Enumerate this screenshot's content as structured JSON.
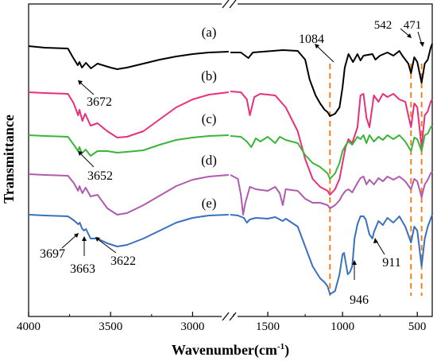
{
  "chart_data": {
    "type": "line",
    "xlabel_main": "Wavenumber(cm",
    "xlabel_sup": "-1",
    "xlabel_close": ")",
    "ylabel": "Transmittance",
    "x_axis_break": true,
    "xlim_left": [
      4000,
      2750
    ],
    "xlim_right": [
      1750,
      400
    ],
    "xticks_left": [
      "4000",
      "3500",
      "3000"
    ],
    "xticks_right": [
      "1500",
      "1000",
      "500"
    ],
    "series": [
      {
        "name": "(a)",
        "color": "#000000",
        "left": [
          [
            4000,
            58
          ],
          [
            3900,
            60
          ],
          [
            3760,
            61
          ],
          [
            3730,
            72
          ],
          [
            3700,
            82
          ],
          [
            3690,
            78
          ],
          [
            3675,
            85
          ],
          [
            3650,
            79
          ],
          [
            3620,
            86
          ],
          [
            3580,
            80
          ],
          [
            3500,
            85
          ],
          [
            3460,
            87
          ],
          [
            3400,
            85
          ],
          [
            3300,
            80
          ],
          [
            3200,
            75
          ],
          [
            3100,
            71
          ],
          [
            3000,
            68
          ],
          [
            2900,
            66
          ],
          [
            2780,
            65
          ]
        ],
        "right": [
          [
            1750,
            66
          ],
          [
            1680,
            66
          ],
          [
            1630,
            73
          ],
          [
            1600,
            66
          ],
          [
            1400,
            63
          ],
          [
            1300,
            64
          ],
          [
            1250,
            75
          ],
          [
            1220,
            100
          ],
          [
            1180,
            120
          ],
          [
            1150,
            130
          ],
          [
            1120,
            138
          ],
          [
            1100,
            141
          ],
          [
            1084,
            146
          ],
          [
            1050,
            143
          ],
          [
            1020,
            135
          ],
          [
            1000,
            110
          ],
          [
            985,
            85
          ],
          [
            960,
            68
          ],
          [
            930,
            78
          ],
          [
            900,
            68
          ],
          [
            880,
            76
          ],
          [
            860,
            70
          ],
          [
            800,
            68
          ],
          [
            780,
            75
          ],
          [
            750,
            70
          ],
          [
            700,
            66
          ],
          [
            660,
            70
          ],
          [
            620,
            64
          ],
          [
            600,
            70
          ],
          [
            560,
            80
          ],
          [
            542,
            92
          ],
          [
            520,
            72
          ],
          [
            500,
            78
          ],
          [
            471,
            104
          ],
          [
            450,
            80
          ],
          [
            430,
            75
          ],
          [
            410,
            60
          ],
          [
            400,
            55
          ]
        ]
      },
      {
        "name": "(b)",
        "color": "#e8307a",
        "left": [
          [
            4000,
            116
          ],
          [
            3900,
            117
          ],
          [
            3760,
            118
          ],
          [
            3725,
            130
          ],
          [
            3698,
            145
          ],
          [
            3690,
            138
          ],
          [
            3672,
            152
          ],
          [
            3655,
            143
          ],
          [
            3622,
            158
          ],
          [
            3580,
            155
          ],
          [
            3520,
            165
          ],
          [
            3460,
            173
          ],
          [
            3400,
            172
          ],
          [
            3300,
            165
          ],
          [
            3200,
            150
          ],
          [
            3100,
            135
          ],
          [
            3000,
            125
          ],
          [
            2900,
            119
          ],
          [
            2780,
            116
          ]
        ],
        "right": [
          [
            1750,
            115
          ],
          [
            1680,
            116
          ],
          [
            1640,
            125
          ],
          [
            1620,
            145
          ],
          [
            1590,
            122
          ],
          [
            1550,
            118
          ],
          [
            1450,
            120
          ],
          [
            1380,
            135
          ],
          [
            1300,
            165
          ],
          [
            1250,
            200
          ],
          [
            1200,
            225
          ],
          [
            1150,
            235
          ],
          [
            1100,
            240
          ],
          [
            1084,
            245
          ],
          [
            1050,
            238
          ],
          [
            1020,
            225
          ],
          [
            1000,
            205
          ],
          [
            980,
            185
          ],
          [
            960,
            175
          ],
          [
            935,
            180
          ],
          [
            900,
            160
          ],
          [
            880,
            120
          ],
          [
            860,
            118
          ],
          [
            840,
            148
          ],
          [
            820,
            160
          ],
          [
            790,
            120
          ],
          [
            760,
            128
          ],
          [
            730,
            118
          ],
          [
            700,
            122
          ],
          [
            660,
            118
          ],
          [
            620,
            125
          ],
          [
            580,
            128
          ],
          [
            542,
            160
          ],
          [
            520,
            130
          ],
          [
            500,
            135
          ],
          [
            471,
            185
          ],
          [
            450,
            145
          ],
          [
            430,
            140
          ],
          [
            410,
            128
          ],
          [
            400,
            125
          ]
        ]
      },
      {
        "name": "(c)",
        "color": "#3cb43c",
        "left": [
          [
            4000,
            170
          ],
          [
            3900,
            171
          ],
          [
            3760,
            172
          ],
          [
            3725,
            182
          ],
          [
            3698,
            190
          ],
          [
            3690,
            185
          ],
          [
            3675,
            193
          ],
          [
            3652,
            188
          ],
          [
            3622,
            196
          ],
          [
            3580,
            190
          ],
          [
            3520,
            190
          ],
          [
            3460,
            192
          ],
          [
            3400,
            191
          ],
          [
            3300,
            189
          ],
          [
            3200,
            182
          ],
          [
            3100,
            176
          ],
          [
            3000,
            173
          ],
          [
            2900,
            171
          ],
          [
            2780,
            170
          ]
        ],
        "right": [
          [
            1750,
            171
          ],
          [
            1680,
            172
          ],
          [
            1640,
            178
          ],
          [
            1610,
            185
          ],
          [
            1580,
            174
          ],
          [
            1550,
            178
          ],
          [
            1500,
            172
          ],
          [
            1450,
            180
          ],
          [
            1420,
            172
          ],
          [
            1380,
            176
          ],
          [
            1300,
            180
          ],
          [
            1250,
            195
          ],
          [
            1200,
            205
          ],
          [
            1150,
            210
          ],
          [
            1100,
            218
          ],
          [
            1084,
            225
          ],
          [
            1050,
            218
          ],
          [
            1020,
            205
          ],
          [
            1000,
            190
          ],
          [
            980,
            183
          ],
          [
            960,
            178
          ],
          [
            935,
            182
          ],
          [
            900,
            172
          ],
          [
            880,
            175
          ],
          [
            860,
            170
          ],
          [
            840,
            180
          ],
          [
            820,
            170
          ],
          [
            790,
            178
          ],
          [
            760,
            172
          ],
          [
            730,
            176
          ],
          [
            700,
            170
          ],
          [
            660,
            175
          ],
          [
            620,
            170
          ],
          [
            580,
            178
          ],
          [
            542,
            190
          ],
          [
            520,
            173
          ],
          [
            500,
            175
          ],
          [
            471,
            190
          ],
          [
            450,
            170
          ],
          [
            430,
            168
          ],
          [
            410,
            160
          ],
          [
            400,
            158
          ]
        ]
      },
      {
        "name": "(d)",
        "color": "#b05ab0",
        "left": [
          [
            4000,
            219
          ],
          [
            3900,
            220
          ],
          [
            3760,
            221
          ],
          [
            3725,
            230
          ],
          [
            3698,
            240
          ],
          [
            3690,
            234
          ],
          [
            3672,
            243
          ],
          [
            3652,
            236
          ],
          [
            3622,
            247
          ],
          [
            3580,
            245
          ],
          [
            3520,
            262
          ],
          [
            3460,
            270
          ],
          [
            3400,
            268
          ],
          [
            3300,
            258
          ],
          [
            3200,
            246
          ],
          [
            3100,
            234
          ],
          [
            3000,
            226
          ],
          [
            2900,
            222
          ],
          [
            2780,
            220
          ]
        ],
        "right": [
          [
            1750,
            220
          ],
          [
            1700,
            225
          ],
          [
            1680,
            245
          ],
          [
            1665,
            270
          ],
          [
            1650,
            255
          ],
          [
            1620,
            235
          ],
          [
            1580,
            238
          ],
          [
            1500,
            240
          ],
          [
            1450,
            235
          ],
          [
            1420,
            243
          ],
          [
            1400,
            258
          ],
          [
            1380,
            238
          ],
          [
            1300,
            240
          ],
          [
            1250,
            250
          ],
          [
            1200,
            255
          ],
          [
            1150,
            255
          ],
          [
            1100,
            258
          ],
          [
            1084,
            262
          ],
          [
            1050,
            258
          ],
          [
            1020,
            252
          ],
          [
            1000,
            245
          ],
          [
            980,
            240
          ],
          [
            960,
            238
          ],
          [
            935,
            242
          ],
          [
            900,
            230
          ],
          [
            880,
            224
          ],
          [
            860,
            222
          ],
          [
            840,
            232
          ],
          [
            820,
            226
          ],
          [
            790,
            232
          ],
          [
            760,
            224
          ],
          [
            730,
            228
          ],
          [
            700,
            222
          ],
          [
            660,
            226
          ],
          [
            620,
            222
          ],
          [
            580,
            228
          ],
          [
            542,
            238
          ],
          [
            520,
            225
          ],
          [
            500,
            228
          ],
          [
            471,
            248
          ],
          [
            450,
            232
          ],
          [
            430,
            226
          ],
          [
            410,
            218
          ],
          [
            400,
            216
          ]
        ]
      },
      {
        "name": "(e)",
        "color": "#3a70c0",
        "left": [
          [
            4000,
            270
          ],
          [
            3900,
            271
          ],
          [
            3760,
            272
          ],
          [
            3725,
            277
          ],
          [
            3697,
            282
          ],
          [
            3688,
            280
          ],
          [
            3675,
            287
          ],
          [
            3663,
            290
          ],
          [
            3650,
            288
          ],
          [
            3622,
            300
          ],
          [
            3580,
            300
          ],
          [
            3520,
            306
          ],
          [
            3460,
            310
          ],
          [
            3400,
            308
          ],
          [
            3300,
            300
          ],
          [
            3200,
            290
          ],
          [
            3100,
            280
          ],
          [
            3000,
            274
          ],
          [
            2900,
            271
          ],
          [
            2780,
            270
          ]
        ],
        "right": [
          [
            1750,
            270
          ],
          [
            1700,
            271
          ],
          [
            1660,
            274
          ],
          [
            1640,
            280
          ],
          [
            1620,
            276
          ],
          [
            1580,
            274
          ],
          [
            1500,
            275
          ],
          [
            1450,
            273
          ],
          [
            1400,
            278
          ],
          [
            1380,
            275
          ],
          [
            1300,
            285
          ],
          [
            1250,
            310
          ],
          [
            1200,
            335
          ],
          [
            1150,
            350
          ],
          [
            1120,
            355
          ],
          [
            1100,
            360
          ],
          [
            1084,
            370
          ],
          [
            1050,
            366
          ],
          [
            1020,
            345
          ],
          [
            1000,
            320
          ],
          [
            990,
            318
          ],
          [
            975,
            334
          ],
          [
            965,
            345
          ],
          [
            950,
            342
          ],
          [
            935,
            335
          ],
          [
            920,
            300
          ],
          [
            900,
            282
          ],
          [
            880,
            272
          ],
          [
            860,
            272
          ],
          [
            845,
            276
          ],
          [
            820,
            295
          ],
          [
            800,
            300
          ],
          [
            790,
            292
          ],
          [
            760,
            278
          ],
          [
            730,
            283
          ],
          [
            700,
            274
          ],
          [
            660,
            280
          ],
          [
            620,
            272
          ],
          [
            580,
            285
          ],
          [
            542,
            305
          ],
          [
            520,
            285
          ],
          [
            500,
            290
          ],
          [
            471,
            335
          ],
          [
            450,
            300
          ],
          [
            430,
            285
          ],
          [
            410,
            275
          ],
          [
            400,
            270
          ]
        ]
      }
    ],
    "reference_lines": [
      1084,
      542,
      471
    ],
    "reference_color": "#f08020",
    "annotations": {
      "a_label": "(a)",
      "b_label": "(b)",
      "c_label": "(c)",
      "d_label": "(d)",
      "e_label": "(e)",
      "p1084": "1084",
      "p542": "542",
      "p471": "471",
      "p3672": "3672",
      "p3652": "3652",
      "p3697": "3697",
      "p3663": "3663",
      "p3622": "3622",
      "p946": "946",
      "p911": "911"
    }
  }
}
